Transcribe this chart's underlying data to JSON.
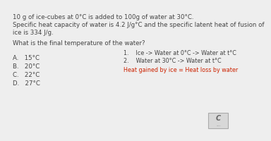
{
  "background_color": "#eeeeee",
  "title_text": "10 g of ice-cubes at 0°C is added to 100g of water at 30°C.",
  "line2_text": "Specific heat capacity of water is 4.2 J/g°C and the specific latent heat of fusion of",
  "line3_text": "ice is 334 J/g.",
  "question_text": "What is the final temperature of the water?",
  "options": [
    "A.   15°C",
    "B.   20°C",
    "C.   22°C",
    "D.   27°C"
  ],
  "step1": "1.    Ice -> Water at 0°C -> Water at t°C",
  "step2": "2.    Water at 30°C -> Water at t°C",
  "hint_text": "Heat gained by ice = Heat loss by water",
  "hint_color": "#cc2200",
  "text_color": "#444444",
  "font_size_main": 6.2,
  "font_size_options": 6.2,
  "font_size_steps": 5.8,
  "font_size_hint": 5.8
}
